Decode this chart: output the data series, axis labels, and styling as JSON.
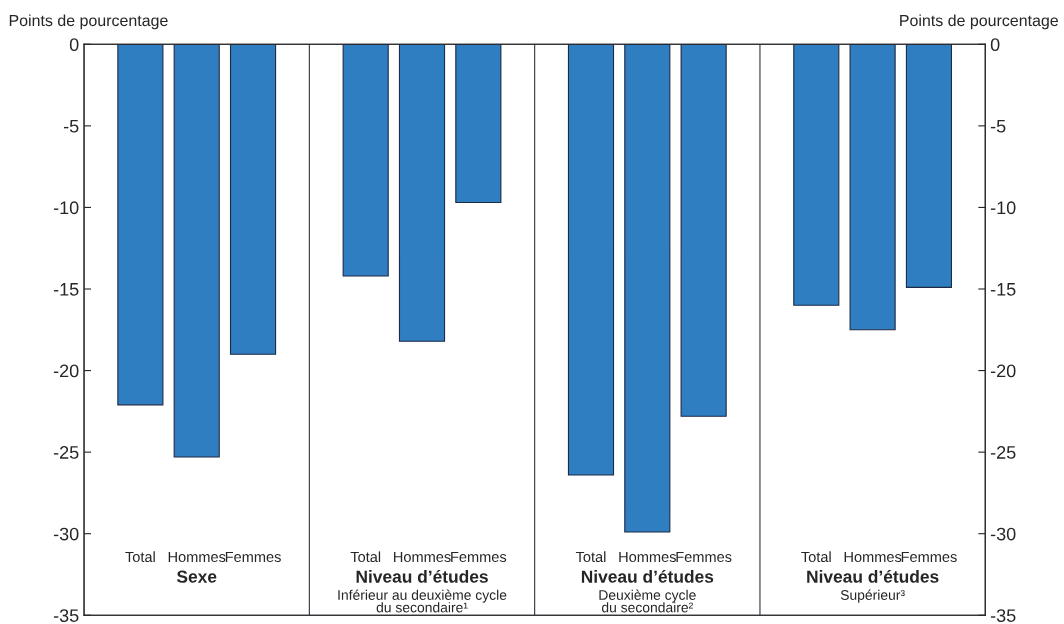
{
  "chart_data": {
    "type": "bar",
    "ylabel": "Points de pourcentage",
    "y2label": "Points de pourcentage",
    "categories": [
      "Total",
      "Hommes",
      "Femmes",
      "Total",
      "Hommes",
      "Femmes",
      "Total",
      "Hommes",
      "Femmes",
      "Total",
      "Hommes",
      "Femmes"
    ],
    "values": [
      -22.1,
      -25.3,
      -19.0,
      -14.2,
      -18.2,
      -9.7,
      -26.4,
      -29.9,
      -22.8,
      -16.0,
      -17.5,
      -14.9
    ],
    "color": "#2f7ec1",
    "ylim": [
      -35,
      0
    ],
    "yticks": [
      0,
      -5,
      -10,
      -15,
      -20,
      -25,
      -30,
      -35
    ],
    "y2lim": [
      -35,
      0
    ],
    "y2ticks": [
      0,
      -5,
      -10,
      -15,
      -20,
      -25,
      -30,
      -35
    ],
    "grid": false,
    "legend": false,
    "annotations": [
      "Sexe",
      "Niveau d’études\nInférieur au deuxième cycle\ndu secondaire¹",
      "Niveau d’études\nDeuxième cycle\ndu secondaire²",
      "Niveau d’études\nSupérieur³"
    ]
  }
}
